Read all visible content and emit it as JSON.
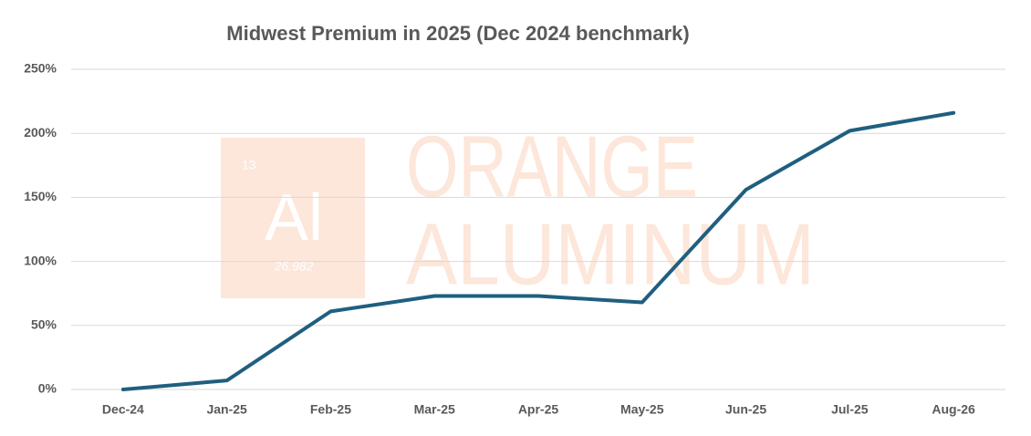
{
  "chart_data": {
    "type": "line",
    "title": "Midwest Premium in 2025 (Dec 2024 benchmark)",
    "categories": [
      "Dec-24",
      "Jan-25",
      "Feb-25",
      "Mar-25",
      "Apr-25",
      "May-25",
      "Jun-25",
      "Jul-25",
      "Aug-26"
    ],
    "series": [
      {
        "name": "Midwest Premium",
        "color": "#1f5f7f",
        "values": [
          0,
          7,
          61,
          73,
          73,
          68,
          156,
          202,
          216
        ]
      }
    ],
    "ylim": [
      0,
      250
    ],
    "yticks": [
      {
        "value": 0,
        "label": "0%"
      },
      {
        "value": 50,
        "label": "50%"
      },
      {
        "value": 100,
        "label": "100%"
      },
      {
        "value": 150,
        "label": "150%"
      },
      {
        "value": 200,
        "label": "200%"
      },
      {
        "value": 250,
        "label": "250%"
      }
    ],
    "grid": true
  },
  "watermark": {
    "number": "13",
    "symbol": "Al",
    "mass": "26.982",
    "line1": "ORANGE",
    "line2": "ALUMINUM"
  }
}
